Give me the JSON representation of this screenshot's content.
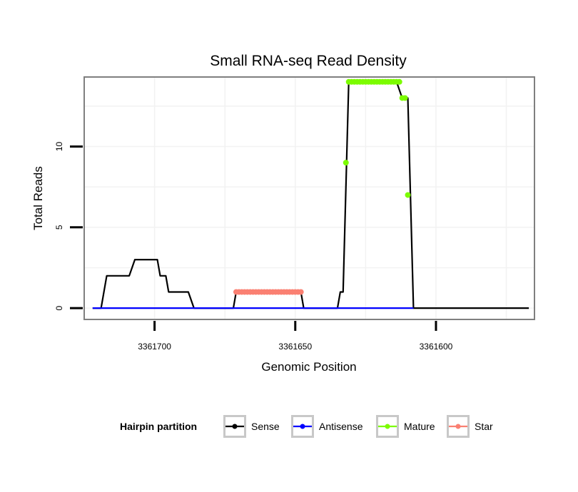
{
  "chart_data": {
    "type": "line",
    "title": "Small RNA-seq Read Density",
    "xlabel": "Genomic Position",
    "ylabel": "Total Reads",
    "x_reversed": true,
    "xlim": [
      3361725,
      3361565
    ],
    "ylim": [
      -0.7,
      14.3
    ],
    "x_ticks": [
      3361700,
      3361650,
      3361600
    ],
    "x_tick_labels": [
      "3361700",
      "3361650",
      "3361600"
    ],
    "y_ticks": [
      0,
      5,
      10
    ],
    "y_tick_labels": [
      "0",
      "5",
      "10"
    ],
    "grid": true,
    "legend": {
      "title": "Hairpin partition",
      "position": "bottom",
      "entries": [
        {
          "label": "Sense",
          "color": "#000000"
        },
        {
          "label": "Antisense",
          "color": "#0000ff"
        },
        {
          "label": "Mature",
          "color": "#7cfc00"
        },
        {
          "label": "Star",
          "color": "#fa8072"
        }
      ]
    },
    "series": [
      {
        "name": "Sense",
        "color": "#000000",
        "style": "line",
        "points": [
          [
            3361722,
            0
          ],
          [
            3361719,
            0
          ],
          [
            3361717,
            2
          ],
          [
            3361709,
            2
          ],
          [
            3361707,
            3
          ],
          [
            3361699,
            3
          ],
          [
            3361698,
            2
          ],
          [
            3361696,
            2
          ],
          [
            3361695,
            1
          ],
          [
            3361688,
            1
          ],
          [
            3361686,
            0
          ],
          [
            3361672,
            0
          ],
          [
            3361671,
            1
          ],
          [
            3361648,
            1
          ],
          [
            3361647,
            0
          ],
          [
            3361635,
            0
          ],
          [
            3361634,
            1
          ],
          [
            3361633,
            1
          ],
          [
            3361631,
            14
          ],
          [
            3361614,
            14
          ],
          [
            3361612,
            13
          ],
          [
            3361610,
            13
          ],
          [
            3361608,
            0
          ],
          [
            3361567,
            0
          ]
        ]
      },
      {
        "name": "Antisense",
        "color": "#0000ff",
        "style": "line",
        "points": [
          [
            3361722,
            0
          ],
          [
            3361608,
            0
          ]
        ]
      },
      {
        "name": "Mature",
        "color": "#7cfc00",
        "style": "points",
        "points": [
          [
            3361632,
            9
          ],
          [
            3361631,
            14
          ],
          [
            3361630,
            14
          ],
          [
            3361629,
            14
          ],
          [
            3361628,
            14
          ],
          [
            3361627,
            14
          ],
          [
            3361626,
            14
          ],
          [
            3361625,
            14
          ],
          [
            3361624,
            14
          ],
          [
            3361623,
            14
          ],
          [
            3361622,
            14
          ],
          [
            3361621,
            14
          ],
          [
            3361620,
            14
          ],
          [
            3361619,
            14
          ],
          [
            3361618,
            14
          ],
          [
            3361617,
            14
          ],
          [
            3361616,
            14
          ],
          [
            3361615,
            14
          ],
          [
            3361614,
            14
          ],
          [
            3361613,
            14
          ],
          [
            3361612,
            13
          ],
          [
            3361611,
            13
          ],
          [
            3361610,
            7
          ]
        ]
      },
      {
        "name": "Star",
        "color": "#fa8072",
        "style": "points",
        "points": [
          [
            3361671,
            1
          ],
          [
            3361670,
            1
          ],
          [
            3361669,
            1
          ],
          [
            3361668,
            1
          ],
          [
            3361667,
            1
          ],
          [
            3361666,
            1
          ],
          [
            3361665,
            1
          ],
          [
            3361664,
            1
          ],
          [
            3361663,
            1
          ],
          [
            3361662,
            1
          ],
          [
            3361661,
            1
          ],
          [
            3361660,
            1
          ],
          [
            3361659,
            1
          ],
          [
            3361658,
            1
          ],
          [
            3361657,
            1
          ],
          [
            3361656,
            1
          ],
          [
            3361655,
            1
          ],
          [
            3361654,
            1
          ],
          [
            3361653,
            1
          ],
          [
            3361652,
            1
          ],
          [
            3361651,
            1
          ],
          [
            3361650,
            1
          ],
          [
            3361649,
            1
          ],
          [
            3361648,
            1
          ]
        ]
      }
    ]
  }
}
